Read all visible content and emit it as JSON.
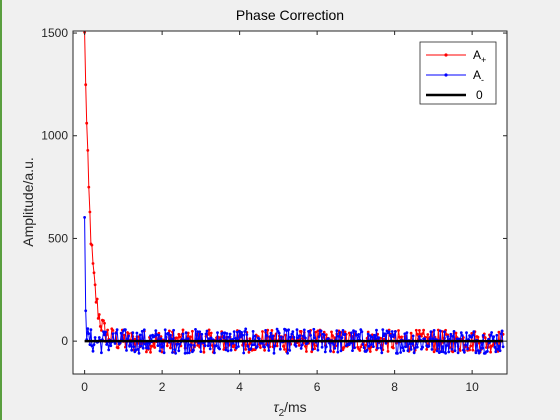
{
  "chart_data": {
    "type": "line",
    "title": "Phase Correction",
    "xlabel": "τ2/ms",
    "ylabel": "Amplitude/a.u.",
    "xlim": [
      -0.3,
      10.9
    ],
    "ylim": [
      -160,
      1510
    ],
    "xticks": [
      0,
      2,
      4,
      6,
      8,
      10
    ],
    "yticks": [
      0,
      500,
      1000,
      1500
    ],
    "grid": false,
    "legend_position": "top-right",
    "series": [
      {
        "name": "A+",
        "color": "#ff0000",
        "marker": "dot",
        "decay": {
          "t0": 0.0,
          "amplitude": 1500,
          "tau_ms": 0.15,
          "t_end": 10.8,
          "step_ms": 0.027,
          "noise_amplitude": 55
        }
      },
      {
        "name": "A-",
        "color": "#0000ff",
        "marker": "dot",
        "decay": {
          "t0": 0.0,
          "amplitude": 610,
          "tau_ms": 0.02,
          "t_end": 10.8,
          "step_ms": 0.027,
          "noise_amplitude": 60
        }
      },
      {
        "name": "0",
        "color": "#000000",
        "marker": "none",
        "x": [
          0,
          10.8
        ],
        "values": [
          0,
          0
        ]
      }
    ]
  }
}
